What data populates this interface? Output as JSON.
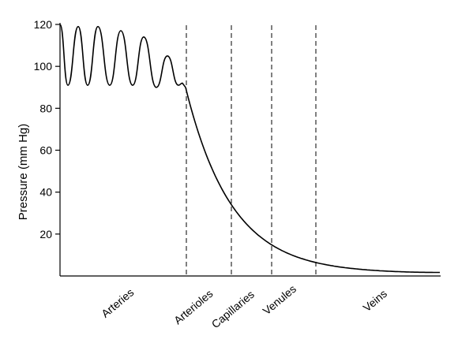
{
  "chart_data": {
    "type": "line",
    "ylabel": "Pressure (mm Hg)",
    "ylim": [
      0,
      120
    ],
    "yticks": [
      20,
      40,
      60,
      80,
      100,
      120
    ],
    "segments": [
      "Arteries",
      "Arterioles",
      "Capillaries",
      "Venules",
      "Veins"
    ],
    "pressure_profile": {
      "artery_peaks": [
        120,
        119,
        119,
        117,
        114,
        105
      ],
      "artery_troughs": [
        91,
        91,
        91,
        91,
        90
      ],
      "arteriole_start": 90,
      "arteriole_end": 34,
      "capillary_end": 14,
      "venule_end": 4,
      "vein_end": 1.5
    },
    "grid": false,
    "legend": "none"
  }
}
